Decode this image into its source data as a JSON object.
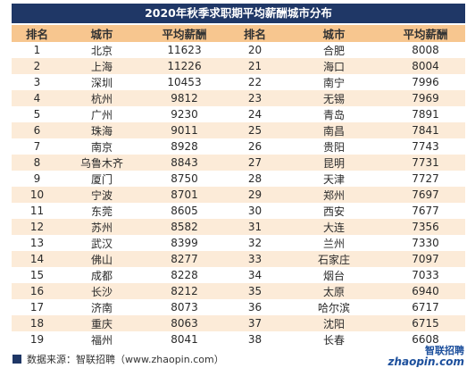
{
  "title": "2020年秋季求职期平均薪酬城市分布",
  "headers": [
    "排名",
    "城市",
    "平均薪酬",
    "排名",
    "城市",
    "平均薪酬"
  ],
  "rows": [
    {
      "rank_left": "1",
      "city_left": "北京",
      "salary_left": "11623",
      "rank_right": "20",
      "city_right": "合肥",
      "salary_right": "8008"
    },
    {
      "rank_left": "2",
      "city_left": "上海",
      "salary_left": "11226",
      "rank_right": "21",
      "city_right": "海口",
      "salary_right": "8004"
    },
    {
      "rank_left": "3",
      "city_left": "深圳",
      "salary_left": "10453",
      "rank_right": "22",
      "city_right": "南宁",
      "salary_right": "7996"
    },
    {
      "rank_left": "4",
      "city_left": "杭州",
      "salary_left": "9812",
      "rank_right": "23",
      "city_right": "无锡",
      "salary_right": "7969"
    },
    {
      "rank_left": "5",
      "city_left": "广州",
      "salary_left": "9230",
      "rank_right": "24",
      "city_right": "青岛",
      "salary_right": "7891"
    },
    {
      "rank_left": "6",
      "city_left": "珠海",
      "salary_left": "9011",
      "rank_right": "25",
      "city_right": "南昌",
      "salary_right": "7841"
    },
    {
      "rank_left": "7",
      "city_left": "南京",
      "salary_left": "8928",
      "rank_right": "26",
      "city_right": "贵阳",
      "salary_right": "7743"
    },
    {
      "rank_left": "8",
      "city_left": "乌鲁木齐",
      "salary_left": "8843",
      "rank_right": "27",
      "city_right": "昆明",
      "salary_right": "7731"
    },
    {
      "rank_left": "9",
      "city_left": "厦门",
      "salary_left": "8750",
      "rank_right": "28",
      "city_right": "天津",
      "salary_right": "7727"
    },
    {
      "rank_left": "10",
      "city_left": "宁波",
      "salary_left": "8701",
      "rank_right": "29",
      "city_right": "郑州",
      "salary_right": "7697"
    },
    {
      "rank_left": "11",
      "city_left": "东莞",
      "salary_left": "8605",
      "rank_right": "30",
      "city_right": "西安",
      "salary_right": "7677"
    },
    {
      "rank_left": "12",
      "city_left": "苏州",
      "salary_left": "8582",
      "rank_right": "31",
      "city_right": "大连",
      "salary_right": "7356"
    },
    {
      "rank_left": "13",
      "city_left": "武汉",
      "salary_left": "8399",
      "rank_right": "32",
      "city_right": "兰州",
      "salary_right": "7330"
    },
    {
      "rank_left": "14",
      "city_left": "佛山",
      "salary_left": "8277",
      "rank_right": "33",
      "city_right": "石家庄",
      "salary_right": "7097"
    },
    {
      "rank_left": "15",
      "city_left": "成都",
      "salary_left": "8228",
      "rank_right": "34",
      "city_right": "烟台",
      "salary_right": "7033"
    },
    {
      "rank_left": "16",
      "city_left": "长沙",
      "salary_left": "8212",
      "rank_right": "35",
      "city_right": "太原",
      "salary_right": "6940"
    },
    {
      "rank_left": "17",
      "city_left": "济南",
      "salary_left": "8073",
      "rank_right": "36",
      "city_right": "哈尔滨",
      "salary_right": "6717"
    },
    {
      "rank_left": "18",
      "city_left": "重庆",
      "salary_left": "8063",
      "rank_right": "37",
      "city_right": "沈阳",
      "salary_right": "6715"
    },
    {
      "rank_left": "19",
      "city_left": "福州",
      "salary_left": "8041",
      "rank_right": "38",
      "city_right": "长春",
      "salary_right": "6608"
    }
  ],
  "footer": {
    "source": "数据来源：智联招聘（www.zhaopin.com）"
  },
  "logo": {
    "text_top": "智联招聘",
    "text_bottom": "zhaopin.com"
  },
  "colors": {
    "title_bg": "#1f3766",
    "header_bg": "#f7c68f",
    "alt_row_bg": "#fcebd8",
    "logo_blue": "#1c4f9c",
    "logo_orange": "#f18a1c"
  }
}
